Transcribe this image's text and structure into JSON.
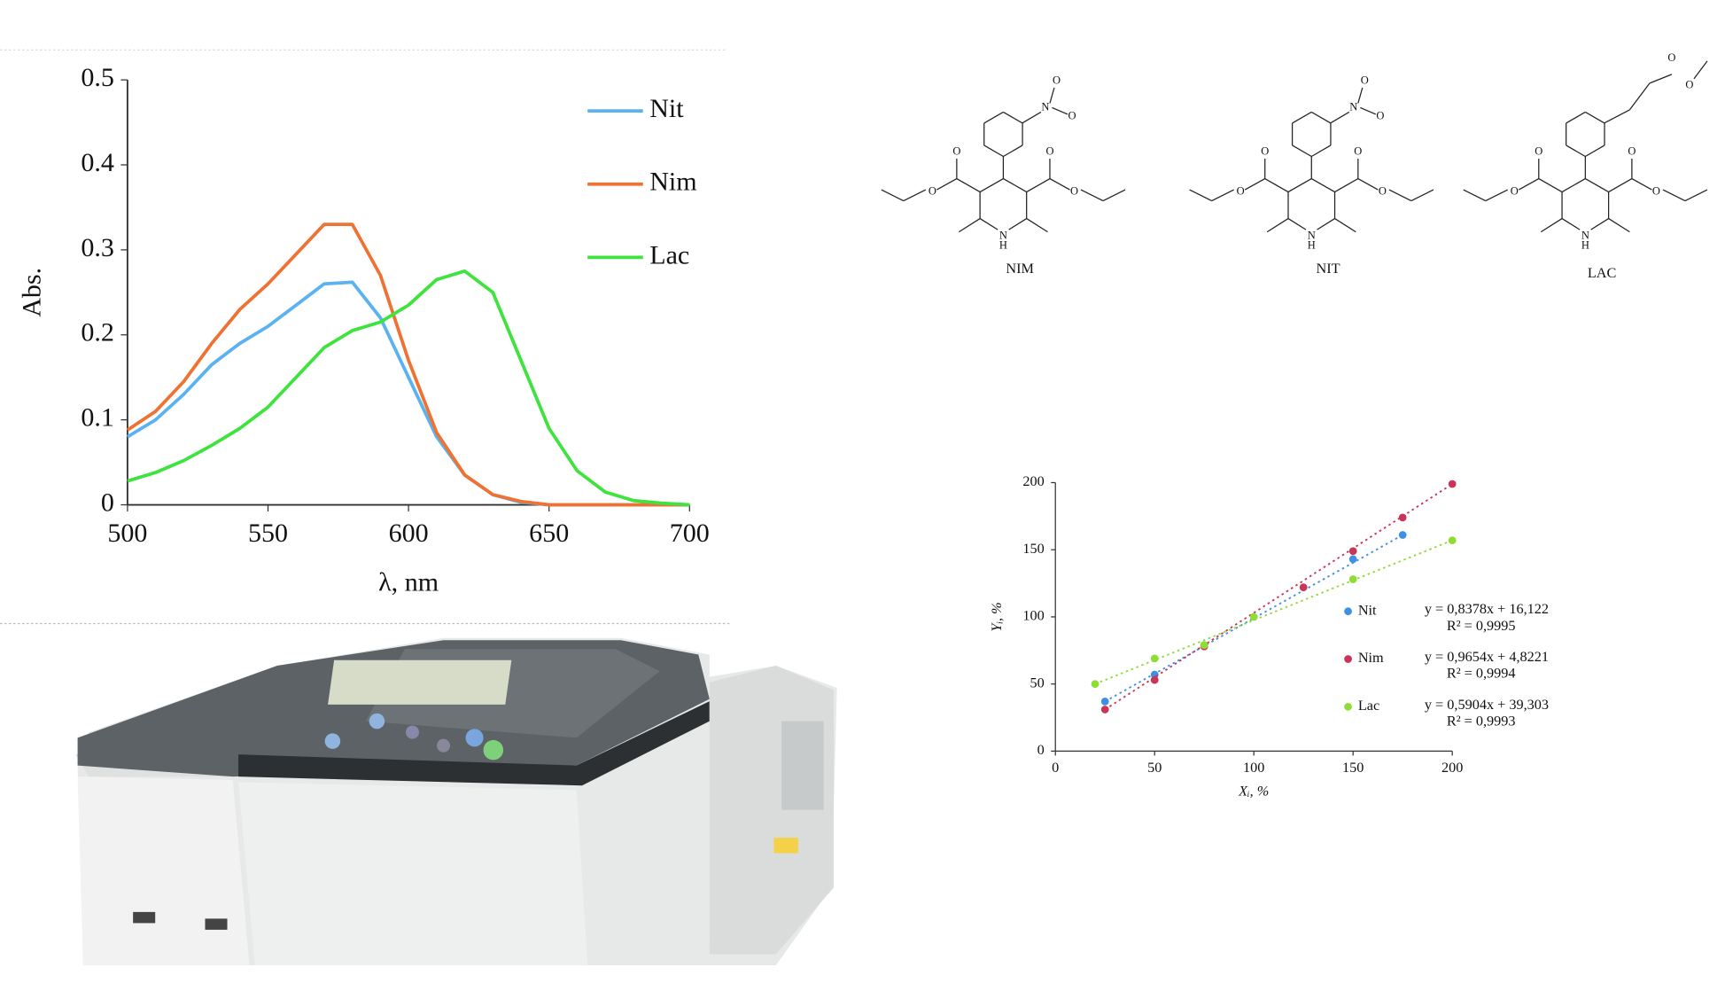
{
  "chart_data": [
    {
      "type": "line",
      "xlabel": "λ, nm",
      "ylabel": "Abs.",
      "x": [
        500,
        510,
        520,
        530,
        540,
        550,
        560,
        570,
        580,
        590,
        600,
        610,
        620,
        630,
        640,
        650,
        660,
        670,
        680,
        690,
        700
      ],
      "series": [
        {
          "name": "Nit",
          "color": "#5ab2f0",
          "values": [
            0.08,
            0.1,
            0.13,
            0.165,
            0.19,
            0.21,
            0.235,
            0.26,
            0.262,
            0.22,
            0.15,
            0.08,
            0.035,
            0.012,
            0.003,
            0,
            0,
            0,
            0,
            0,
            0
          ]
        },
        {
          "name": "Nim",
          "color": "#f07232",
          "values": [
            0.088,
            0.11,
            0.145,
            0.19,
            0.23,
            0.26,
            0.295,
            0.33,
            0.33,
            0.27,
            0.17,
            0.085,
            0.035,
            0.012,
            0.004,
            0,
            0,
            0,
            0,
            0,
            0
          ]
        },
        {
          "name": "Lac",
          "color": "#3ee33e",
          "values": [
            0.028,
            0.038,
            0.052,
            0.07,
            0.09,
            0.115,
            0.15,
            0.185,
            0.205,
            0.215,
            0.235,
            0.265,
            0.275,
            0.25,
            0.17,
            0.09,
            0.04,
            0.015,
            0.005,
            0.002,
            0
          ]
        }
      ],
      "xlim": [
        500,
        700
      ],
      "xticks": [
        500,
        550,
        600,
        650,
        700
      ],
      "ylim": [
        0,
        0.5
      ],
      "yticks": [
        0,
        0.1,
        0.2,
        0.3,
        0.4,
        0.5
      ],
      "legend": "upper right",
      "grid": false
    },
    {
      "type": "scatter",
      "xlabel": "Xᵢ, %",
      "ylabel": "Yᵢ, %",
      "series": [
        {
          "name": "Nit",
          "color": "#3d8fe8",
          "x": [
            25,
            50,
            75,
            150,
            175
          ],
          "values": [
            37,
            57,
            79,
            143,
            161
          ],
          "equation": "y = 0,8378x + 16,122",
          "r2": "R² = 0,9995"
        },
        {
          "name": "Nim",
          "color": "#c93558",
          "x": [
            25,
            50,
            75,
            125,
            150,
            175,
            200
          ],
          "values": [
            31,
            53,
            78,
            122,
            149,
            174,
            199
          ],
          "equation": "y = 0,9654x + 4,8221",
          "r2": "R² = 0,9994"
        },
        {
          "name": "Lac",
          "color": "#8fdc35",
          "x": [
            20,
            50,
            75,
            100,
            150,
            200
          ],
          "values": [
            50,
            69,
            79,
            100,
            128,
            157
          ],
          "equation": "y = 0,5904x + 39,303",
          "r2": "R² = 0,9993"
        }
      ],
      "xlim": [
        0,
        200
      ],
      "xticks": [
        0,
        50,
        100,
        150,
        200
      ],
      "ylim": [
        0,
        200
      ],
      "yticks": [
        0,
        50,
        100,
        150,
        200
      ],
      "legend": "center right",
      "grid": false
    }
  ],
  "structures": {
    "names": [
      "NIM",
      "NIT",
      "LAC"
    ],
    "atoms": [
      "O",
      "N",
      "H"
    ]
  }
}
